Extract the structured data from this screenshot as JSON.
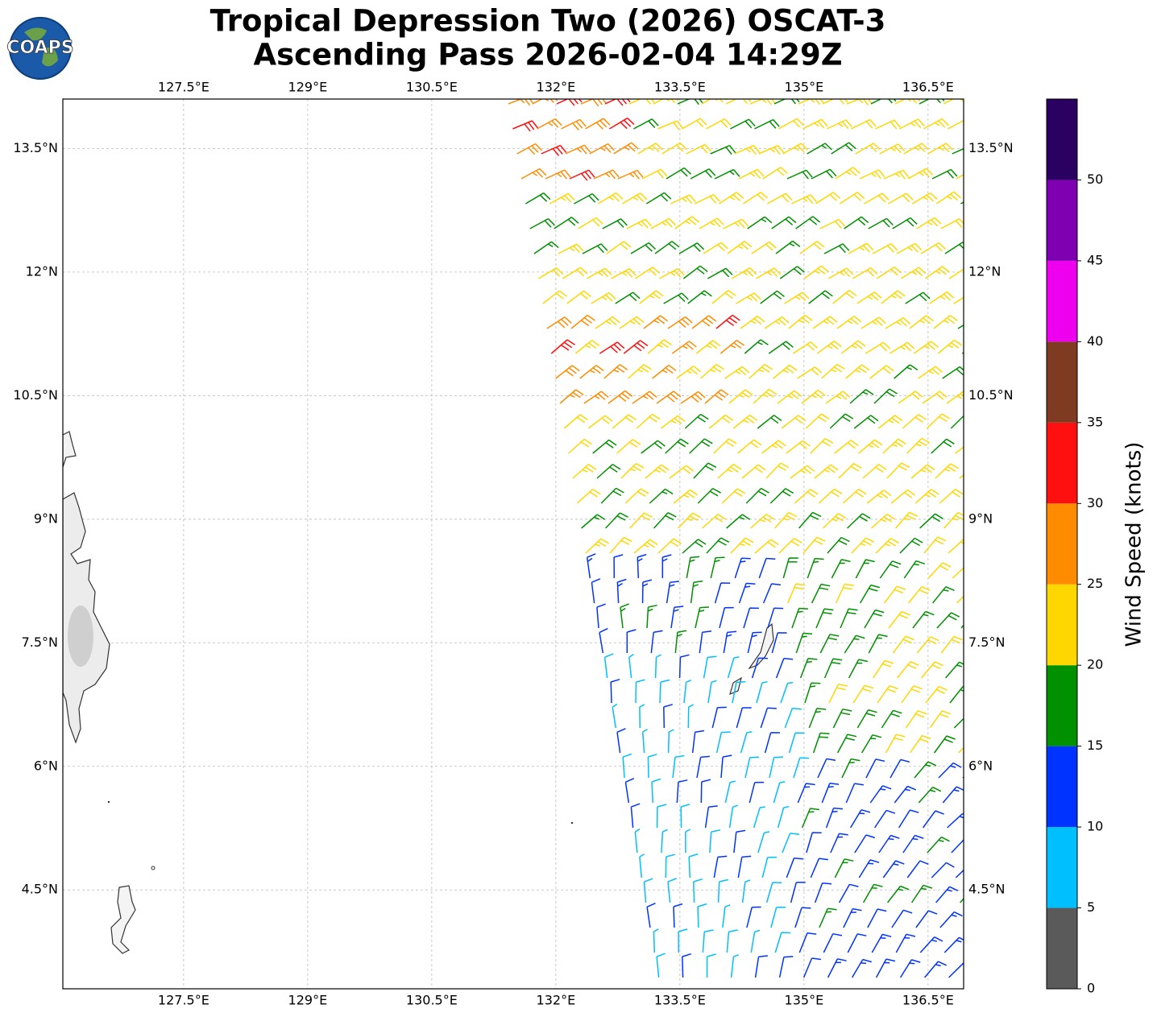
{
  "logo": {
    "text": "COAPS"
  },
  "title": {
    "line1": "Tropical Depression Two (2026) OSCAT-3",
    "line2": "Ascending Pass 2026-02-04 14:29Z"
  },
  "map": {
    "xlim": [
      126.04,
      136.93
    ],
    "ylim": [
      3.3,
      14.1
    ],
    "grid": true,
    "xticks": [
      {
        "value": 127.5,
        "label": "127.5°E"
      },
      {
        "value": 129,
        "label": "129°E"
      },
      {
        "value": 130.5,
        "label": "130.5°E"
      },
      {
        "value": 132,
        "label": "132°E"
      },
      {
        "value": 133.5,
        "label": "133.5°E"
      },
      {
        "value": 135,
        "label": "135°E"
      },
      {
        "value": 136.5,
        "label": "136.5°E"
      }
    ],
    "yticks": [
      {
        "value": 4.5,
        "label": "4.5°N"
      },
      {
        "value": 6,
        "label": "6°N"
      },
      {
        "value": 7.5,
        "label": "7.5°N"
      },
      {
        "value": 9,
        "label": "9°N"
      },
      {
        "value": 10.5,
        "label": "10.5°N"
      },
      {
        "value": 12,
        "label": "12°N"
      },
      {
        "value": 13.5,
        "label": "13.5°N"
      }
    ]
  },
  "colorbar": {
    "label": "Wind Speed (knots)",
    "lim": [
      0,
      55
    ],
    "ticks": [
      0,
      5,
      10,
      15,
      20,
      25,
      30,
      35,
      40,
      45,
      50
    ],
    "colors": [
      "#5a5a5a",
      "#00bfff",
      "#0033ff",
      "#009000",
      "#ffd700",
      "#ff8c00",
      "#ff1010",
      "#7f3a22",
      "#ee00ee",
      "#7f00b0",
      "#2a0060"
    ]
  }
}
